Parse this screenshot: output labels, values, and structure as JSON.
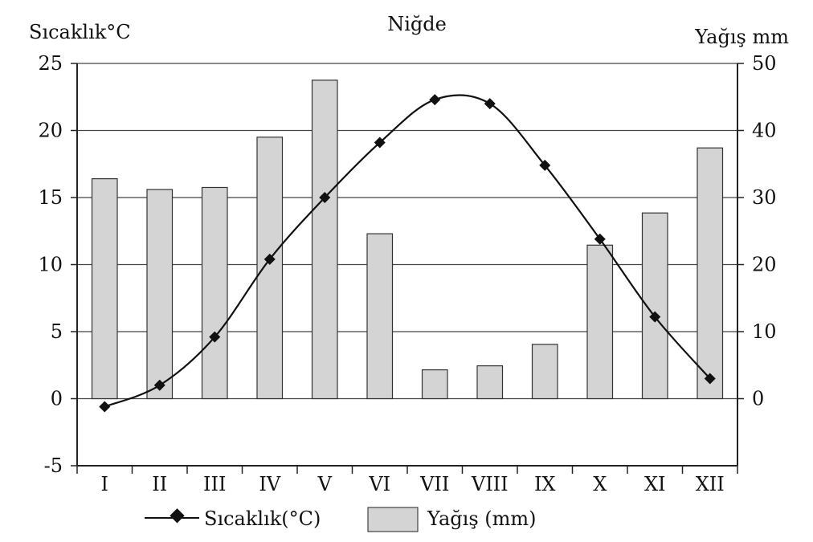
{
  "chart_data": {
    "type": "bar",
    "title": "Niğde",
    "ylabel_left": "Sıcaklık°C",
    "ylabel_right": "Yağış mm",
    "categories": [
      "I",
      "II",
      "III",
      "IV",
      "V",
      "VI",
      "VII",
      "VIII",
      "IX",
      "X",
      "XI",
      "XII"
    ],
    "y_left": {
      "lim": [
        -5,
        25
      ],
      "ticks": [
        "25",
        "20",
        "15",
        "10",
        "5",
        "0",
        "-5"
      ]
    },
    "y_right": {
      "lim": [
        -10,
        50
      ],
      "ticks": [
        "50",
        "40",
        "30",
        "20",
        "10",
        "0"
      ]
    },
    "grid": true,
    "legend": {
      "position": "bottom",
      "temperature_label": "Sıcaklık(°C)",
      "precipitation_label": "Yağış (mm)"
    },
    "series": [
      {
        "name": "Yağış (mm)",
        "kind": "bar",
        "axis": "right",
        "values": [
          32.8,
          31.2,
          31.5,
          39,
          47.5,
          24.6,
          4.3,
          4.9,
          8.1,
          22.9,
          27.7,
          37.4
        ],
        "color": "#d4d4d4"
      },
      {
        "name": "Sıcaklık(°C)",
        "kind": "line",
        "axis": "left",
        "values": [
          -0.6,
          1.0,
          4.6,
          10.4,
          15.0,
          19.1,
          22.3,
          22.0,
          17.4,
          11.9,
          6.1,
          1.5
        ],
        "color": "#111111"
      }
    ]
  }
}
